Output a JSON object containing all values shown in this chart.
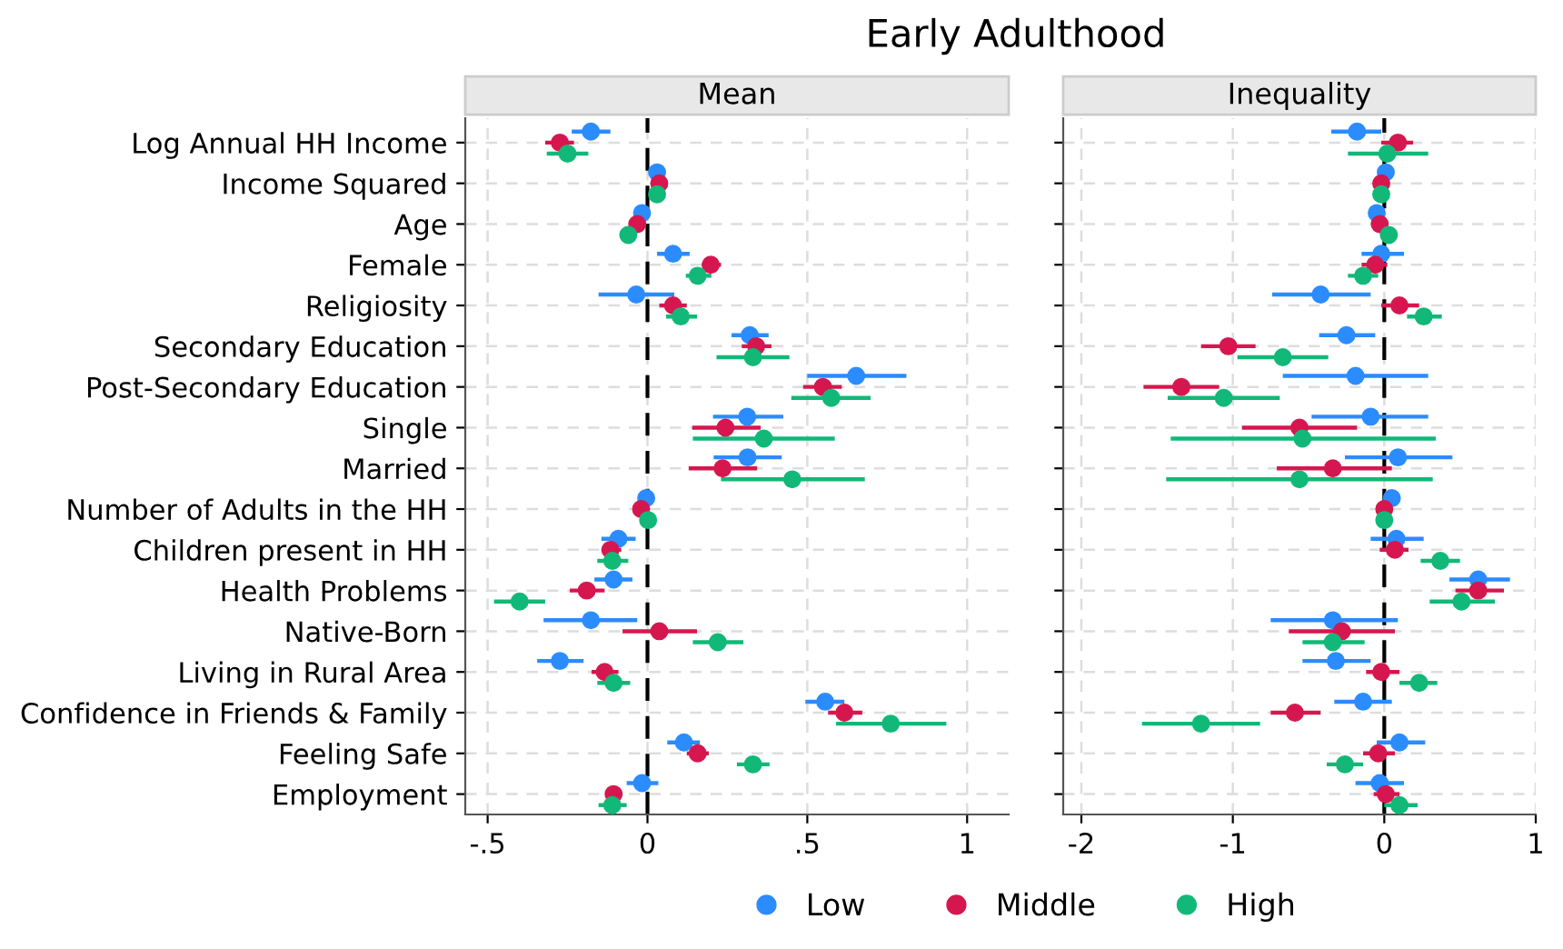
{
  "chart_data": [
    {
      "type": "scatter",
      "orientation": "horizontal",
      "title": "Mean",
      "annotations": [
        "Early Adulthood"
      ],
      "marker": "circle",
      "grid": true,
      "legend": "bottom",
      "categories": [
        "Log Annual HH Income",
        "Income Squared",
        "Age",
        "Female",
        "Religiosity",
        "Secondary Education",
        "Post-Secondary Education",
        "Single",
        "Married",
        "Number of Adults in the HH",
        "Children present in HH",
        "Health Problems",
        "Native-Born",
        "Living in Rural Area",
        "Confidence in Friends & Family",
        "Feeling Safe",
        "Employment"
      ],
      "xlim": [
        -0.57,
        1.13
      ],
      "xticks": [
        {
          "value": -0.5,
          "label": "-.5"
        },
        0,
        {
          "value": 0.5,
          "label": ".5"
        },
        1
      ],
      "ref_lines": [
        {
          "axis": "x",
          "value": 0,
          "label": null,
          "color": "#000000",
          "line_style": "dashed"
        }
      ],
      "series": [
        {
          "name": "Low",
          "color": "#2b8cff",
          "values": [
            -0.177,
            0.03,
            -0.017,
            0.08,
            -0.035,
            0.32,
            0.653,
            0.312,
            0.313,
            -0.004,
            -0.091,
            -0.106,
            -0.177,
            -0.274,
            0.556,
            0.114,
            -0.017
          ],
          "errors": [
            [
              -0.237,
              -0.116
            ],
            null,
            null,
            [
              0.03,
              0.132
            ],
            [
              -0.153,
              0.084
            ],
            [
              0.263,
              0.379
            ],
            [
              0.5,
              0.81
            ],
            [
              0.205,
              0.425
            ],
            [
              0.207,
              0.42
            ],
            null,
            [
              -0.144,
              -0.037
            ],
            [
              -0.166,
              -0.047
            ],
            [
              -0.325,
              -0.032
            ],
            [
              -0.345,
              -0.2
            ],
            [
              0.494,
              0.616
            ],
            [
              0.062,
              0.164
            ],
            [
              -0.065,
              0.034
            ]
          ]
        },
        {
          "name": "Middle",
          "color": "#d6174f",
          "values": [
            -0.274,
            0.037,
            -0.032,
            0.198,
            0.08,
            0.34,
            0.549,
            0.244,
            0.235,
            -0.02,
            -0.116,
            -0.19,
            0.037,
            -0.134,
            0.616,
            0.157,
            -0.106
          ],
          "errors": [
            [
              -0.32,
              -0.23
            ],
            null,
            null,
            [
              0.17,
              0.23
            ],
            [
              0.037,
              0.123
            ],
            [
              0.295,
              0.388
            ],
            [
              0.487,
              0.608
            ],
            [
              0.14,
              0.354
            ],
            [
              0.129,
              0.343
            ],
            null,
            [
              -0.144,
              -0.082
            ],
            [
              -0.243,
              -0.134
            ],
            [
              -0.078,
              0.155
            ],
            [
              -0.175,
              -0.091
            ],
            [
              0.565,
              0.672
            ],
            [
              0.123,
              0.192
            ],
            [
              -0.13,
              -0.078
            ]
          ]
        },
        {
          "name": "High",
          "color": "#12b878",
          "values": [
            -0.25,
            0.03,
            -0.06,
            0.157,
            0.104,
            0.33,
            0.575,
            0.364,
            0.453,
            0.002,
            -0.11,
            -0.4,
            0.22,
            -0.106,
            0.761,
            0.33,
            -0.11
          ],
          "errors": [
            [
              -0.315,
              -0.185
            ],
            null,
            null,
            [
              0.12,
              0.2
            ],
            [
              0.058,
              0.155
            ],
            [
              0.216,
              0.444
            ],
            [
              0.45,
              0.698
            ],
            [
              0.142,
              0.586
            ],
            [
              0.23,
              0.68
            ],
            null,
            [
              -0.157,
              -0.06
            ],
            [
              -0.48,
              -0.32
            ],
            [
              0.142,
              0.3
            ],
            [
              -0.157,
              -0.054
            ],
            [
              0.59,
              0.935
            ],
            [
              0.28,
              0.382
            ],
            [
              -0.153,
              -0.065
            ]
          ]
        }
      ]
    },
    {
      "type": "scatter",
      "orientation": "horizontal",
      "title": "Inequality",
      "marker": "circle",
      "grid": true,
      "tick_labels": "x",
      "categories": [
        null,
        null,
        null,
        null,
        null,
        null,
        null,
        null,
        null,
        null,
        null,
        null,
        null,
        null,
        null,
        null,
        null
      ],
      "xlim": [
        -2.12,
        1.0
      ],
      "xticks": [
        -2,
        -1,
        0,
        1
      ],
      "ref_lines": [
        {
          "axis": "x",
          "value": 0,
          "label": null,
          "color": "#000000",
          "line_style": "dashed"
        }
      ],
      "series": [
        {
          "color": "#2b8cff",
          "values": [
            -0.18,
            0.01,
            -0.05,
            -0.02,
            -0.42,
            -0.25,
            -0.19,
            -0.09,
            0.09,
            0.05,
            0.08,
            0.62,
            -0.34,
            -0.32,
            -0.14,
            0.1,
            -0.03
          ],
          "errors": [
            [
              -0.35,
              -0.02
            ],
            null,
            null,
            [
              -0.15,
              0.13
            ],
            [
              -0.74,
              -0.09
            ],
            [
              -0.43,
              -0.06
            ],
            [
              -0.67,
              0.29
            ],
            [
              -0.48,
              0.29
            ],
            [
              -0.26,
              0.45
            ],
            null,
            [
              -0.09,
              0.26
            ],
            [
              0.43,
              0.83
            ],
            [
              -0.75,
              0.09
            ],
            [
              -0.54,
              -0.09
            ],
            [
              -0.33,
              0.05
            ],
            [
              -0.05,
              0.27
            ],
            [
              -0.19,
              0.13
            ]
          ]
        },
        {
          "color": "#d6174f",
          "values": [
            0.09,
            -0.02,
            -0.03,
            -0.06,
            0.1,
            -1.03,
            -1.34,
            -0.56,
            -0.34,
            0,
            0.07,
            0.62,
            -0.28,
            -0.02,
            -0.59,
            -0.04,
            0.01
          ],
          "errors": [
            [
              -0.02,
              0.19
            ],
            null,
            null,
            [
              -0.15,
              0.02
            ],
            [
              -0.02,
              0.23
            ],
            [
              -1.21,
              -0.85
            ],
            [
              -1.59,
              -1.09
            ],
            [
              -0.94,
              -0.18
            ],
            [
              -0.71,
              0.05
            ],
            null,
            [
              -0.03,
              0.16
            ],
            [
              0.47,
              0.79
            ],
            [
              -0.63,
              0.07
            ],
            [
              -0.12,
              0.1
            ],
            [
              -0.75,
              -0.42
            ],
            [
              -0.14,
              0.07
            ],
            [
              -0.07,
              0.1
            ]
          ]
        },
        {
          "color": "#12b878",
          "values": [
            0.02,
            -0.02,
            0.03,
            -0.14,
            0.26,
            -0.67,
            -1.06,
            -0.54,
            -0.56,
            0,
            0.37,
            0.51,
            -0.34,
            0.23,
            -1.21,
            -0.26,
            0.1
          ],
          "errors": [
            [
              -0.24,
              0.29
            ],
            null,
            null,
            [
              -0.24,
              -0.04
            ],
            [
              0.15,
              0.38
            ],
            [
              -0.97,
              -0.37
            ],
            [
              -1.43,
              -0.69
            ],
            [
              -1.41,
              0.34
            ],
            [
              -1.44,
              0.32
            ],
            null,
            [
              0.24,
              0.5
            ],
            [
              0.3,
              0.73
            ],
            [
              -0.54,
              -0.13
            ],
            [
              0.1,
              0.35
            ],
            [
              -1.6,
              -0.82
            ],
            [
              -0.38,
              -0.14
            ],
            [
              0,
              0.22
            ]
          ]
        }
      ]
    }
  ]
}
